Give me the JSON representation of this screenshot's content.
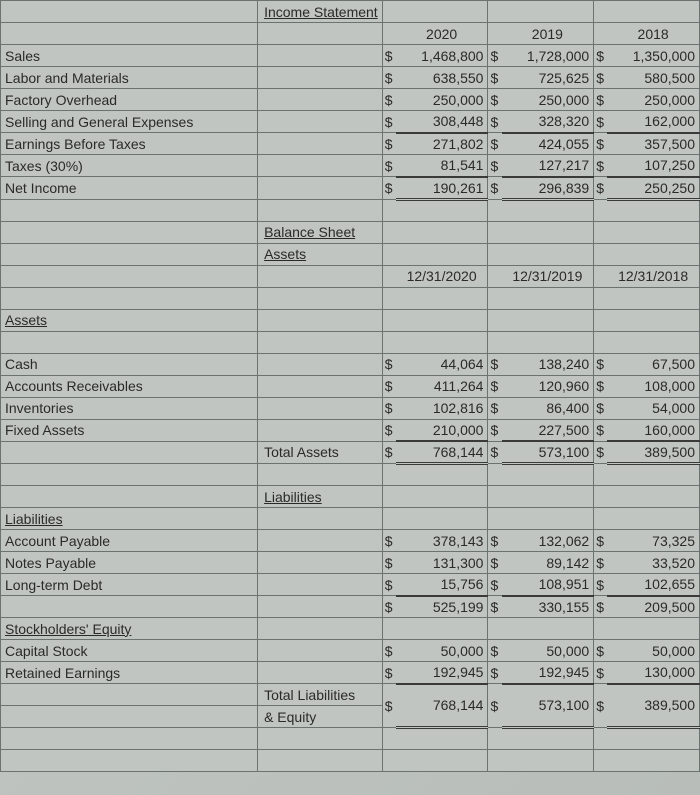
{
  "income_statement": {
    "title": "Income Statement",
    "years": [
      "2020",
      "2019",
      "2018"
    ],
    "rows": [
      {
        "label": "Sales",
        "vals": [
          "1,468,800",
          "1,728,000",
          "1,350,000"
        ]
      },
      {
        "label": "Labor and Materials",
        "vals": [
          "638,550",
          "725,625",
          "580,500"
        ]
      },
      {
        "label": "Factory Overhead",
        "vals": [
          "250,000",
          "250,000",
          "250,000"
        ]
      },
      {
        "label": "Selling and General Expenses",
        "vals": [
          "308,448",
          "328,320",
          "162,000"
        ]
      },
      {
        "label": "Earnings Before Taxes",
        "vals": [
          "271,802",
          "424,055",
          "357,500"
        ]
      },
      {
        "label": "Taxes (30%)",
        "vals": [
          "81,541",
          "127,217",
          "107,250"
        ]
      },
      {
        "label": "Net Income",
        "vals": [
          "190,261",
          "296,839",
          "250,250"
        ]
      }
    ]
  },
  "balance_sheet": {
    "title": "Balance Sheet",
    "assets_title": "Assets",
    "dates": [
      "12/31/2020",
      "12/31/2019",
      "12/31/2018"
    ],
    "assets_header": "Assets",
    "asset_rows": [
      {
        "label": "Cash",
        "vals": [
          "44,064",
          "138,240",
          "67,500"
        ]
      },
      {
        "label": "Accounts Receivables",
        "vals": [
          "411,264",
          "120,960",
          "108,000"
        ]
      },
      {
        "label": "Inventories",
        "vals": [
          "102,816",
          "86,400",
          "54,000"
        ]
      },
      {
        "label": "Fixed Assets",
        "vals": [
          "210,000",
          "227,500",
          "160,000"
        ]
      }
    ],
    "total_assets_label": "Total Assets",
    "total_assets": [
      "768,144",
      "573,100",
      "389,500"
    ],
    "liabilities_title": "Liabilities",
    "liabilities_header": "Liabilities",
    "liability_rows": [
      {
        "label": "Account Payable",
        "vals": [
          "378,143",
          "132,062",
          "73,325"
        ]
      },
      {
        "label": "Notes Payable",
        "vals": [
          "131,300",
          "89,142",
          "33,520"
        ]
      },
      {
        "label": "Long-term Debt",
        "vals": [
          "15,756",
          "108,951",
          "102,655"
        ]
      }
    ],
    "liability_subtotal": [
      "525,199",
      "330,155",
      "209,500"
    ],
    "equity_header": "Stockholders' Equity",
    "equity_rows": [
      {
        "label": "Capital Stock",
        "vals": [
          "50,000",
          "50,000",
          "50,000"
        ]
      },
      {
        "label": "Retained Earnings",
        "vals": [
          "192,945",
          "192,945",
          "130,000"
        ]
      }
    ],
    "total_le_label1": "Total Liabilities",
    "total_le_label2": "& Equity",
    "total_le": [
      "768,144",
      "573,100",
      "389,500"
    ]
  },
  "colors": {
    "cell_bg": "#c0c5c1",
    "border": "#6b7370",
    "text": "#2a2a2a"
  }
}
